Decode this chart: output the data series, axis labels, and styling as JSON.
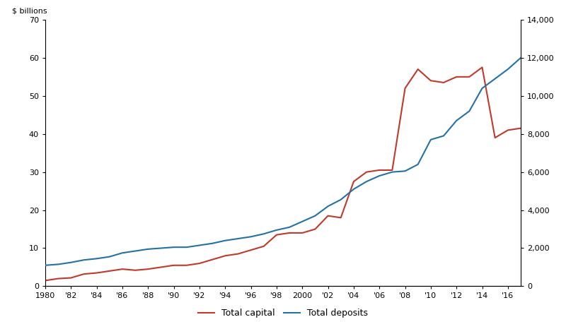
{
  "years": [
    1980,
    1981,
    1982,
    1983,
    1984,
    1985,
    1986,
    1987,
    1988,
    1989,
    1990,
    1991,
    1992,
    1993,
    1994,
    1995,
    1996,
    1997,
    1998,
    1999,
    2000,
    2001,
    2002,
    2003,
    2004,
    2005,
    2006,
    2007,
    2008,
    2009,
    2010,
    2011,
    2012,
    2013,
    2014,
    2015,
    2016,
    2017
  ],
  "total_capital": [
    1.5,
    2.0,
    2.2,
    3.2,
    3.5,
    4.0,
    4.5,
    4.2,
    4.5,
    5.0,
    5.5,
    5.5,
    6.0,
    7.0,
    8.0,
    8.5,
    9.5,
    10.5,
    13.5,
    14.0,
    14.0,
    15.0,
    18.5,
    18.0,
    27.5,
    30.0,
    30.5,
    30.5,
    52.0,
    57.0,
    54.0,
    53.5,
    55.0,
    55.0,
    57.5,
    39.0,
    41.0,
    41.5
  ],
  "total_deposits": [
    1100,
    1150,
    1250,
    1380,
    1450,
    1550,
    1750,
    1850,
    1950,
    2000,
    2050,
    2050,
    2150,
    2250,
    2400,
    2500,
    2600,
    2750,
    2950,
    3100,
    3400,
    3700,
    4200,
    4550,
    5100,
    5500,
    5800,
    6000,
    6050,
    6400,
    7700,
    7900,
    8700,
    9200,
    10400,
    10900,
    11400,
    12000
  ],
  "total_capital_color": "#c0392b",
  "total_deposits_color": "#2471a3",
  "left_ylabel": "$ billions",
  "left_ylim": [
    0,
    70
  ],
  "left_yticks": [
    0,
    10,
    20,
    30,
    40,
    50,
    60,
    70
  ],
  "right_ylim": [
    0,
    14000
  ],
  "right_yticks": [
    0,
    2000,
    4000,
    6000,
    8000,
    10000,
    12000,
    14000
  ],
  "xtick_labels": [
    "1980",
    "'82",
    "'84",
    "'86",
    "'88",
    "'90",
    "'92",
    "'94",
    "'96",
    "'98",
    "2000",
    "'02",
    "'04",
    "'06",
    "'08",
    "'10",
    "'12",
    "'14",
    "'16"
  ],
  "xtick_positions": [
    1980,
    1982,
    1984,
    1986,
    1988,
    1990,
    1992,
    1994,
    1996,
    1998,
    2000,
    2002,
    2004,
    2006,
    2008,
    2010,
    2012,
    2014,
    2016
  ],
  "legend_capital": "Total capital",
  "legend_deposits": "Total deposits",
  "line_width": 1.5,
  "background_color": "#ffffff",
  "grid_color": "#d0d0d0"
}
